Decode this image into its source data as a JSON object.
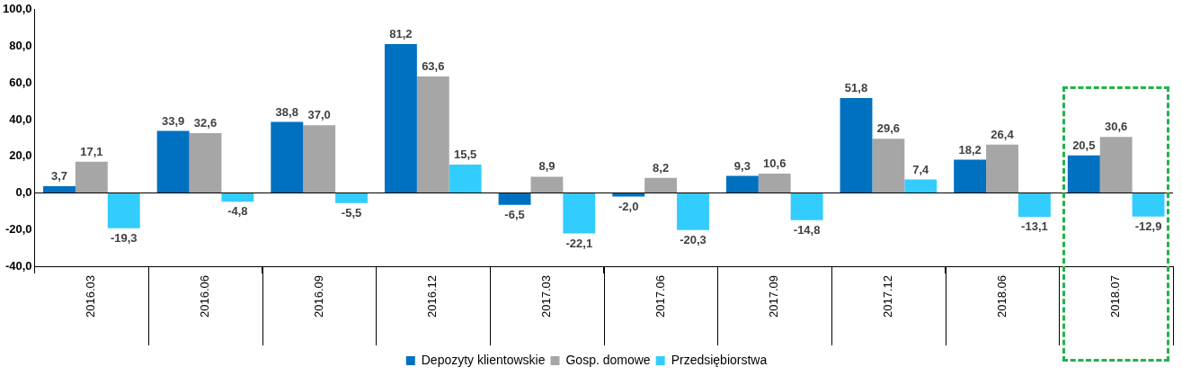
{
  "chart_data": {
    "type": "bar",
    "categories": [
      "2016.03",
      "2016.06",
      "2016.09",
      "2016.12",
      "2017.03",
      "2017.06",
      "2017.09",
      "2017.12",
      "2018.06",
      "2018.07"
    ],
    "series": [
      {
        "name": "Depozyty klientowskie",
        "color": "#0070c0",
        "values": [
          3.7,
          33.9,
          38.8,
          81.2,
          -6.5,
          -2.0,
          9.3,
          51.8,
          18.2,
          20.5
        ],
        "value_labels": [
          "3,7",
          "33,9",
          "38,8",
          "81,2",
          "-6,5",
          "-2,0",
          "9,3",
          "51,8",
          "18,2",
          "20,5"
        ]
      },
      {
        "name": "Gosp. domowe",
        "color": "#a6a6a6",
        "values": [
          17.1,
          32.6,
          37.0,
          63.6,
          8.9,
          8.2,
          10.6,
          29.6,
          26.4,
          30.6
        ],
        "value_labels": [
          "17,1",
          "32,6",
          "37,0",
          "63,6",
          "8,9",
          "8,2",
          "10,6",
          "29,6",
          "26,4",
          "30,6"
        ]
      },
      {
        "name": "Przedsiębiorstwa",
        "color": "#33ccff",
        "values": [
          -19.3,
          -4.8,
          -5.5,
          15.5,
          -22.1,
          -20.3,
          -14.8,
          7.4,
          -13.1,
          -12.9
        ],
        "value_labels": [
          "-19,3",
          "-4,8",
          "-5,5",
          "15,5",
          "-22,1",
          "-20,3",
          "-14,8",
          "7,4",
          "-13,1",
          "-12,9"
        ]
      }
    ],
    "ylim": [
      -40,
      100
    ],
    "yticks": [
      {
        "value": -40,
        "label": "-40,0"
      },
      {
        "value": -20,
        "label": "-20,0"
      },
      {
        "value": 0,
        "label": "0,0"
      },
      {
        "value": 20,
        "label": "20,0"
      },
      {
        "value": 40,
        "label": "40,0"
      },
      {
        "value": 60,
        "label": "60,0"
      },
      {
        "value": 80,
        "label": "80,0"
      },
      {
        "value": 100,
        "label": "100,0"
      }
    ],
    "legend": "bottom"
  }
}
